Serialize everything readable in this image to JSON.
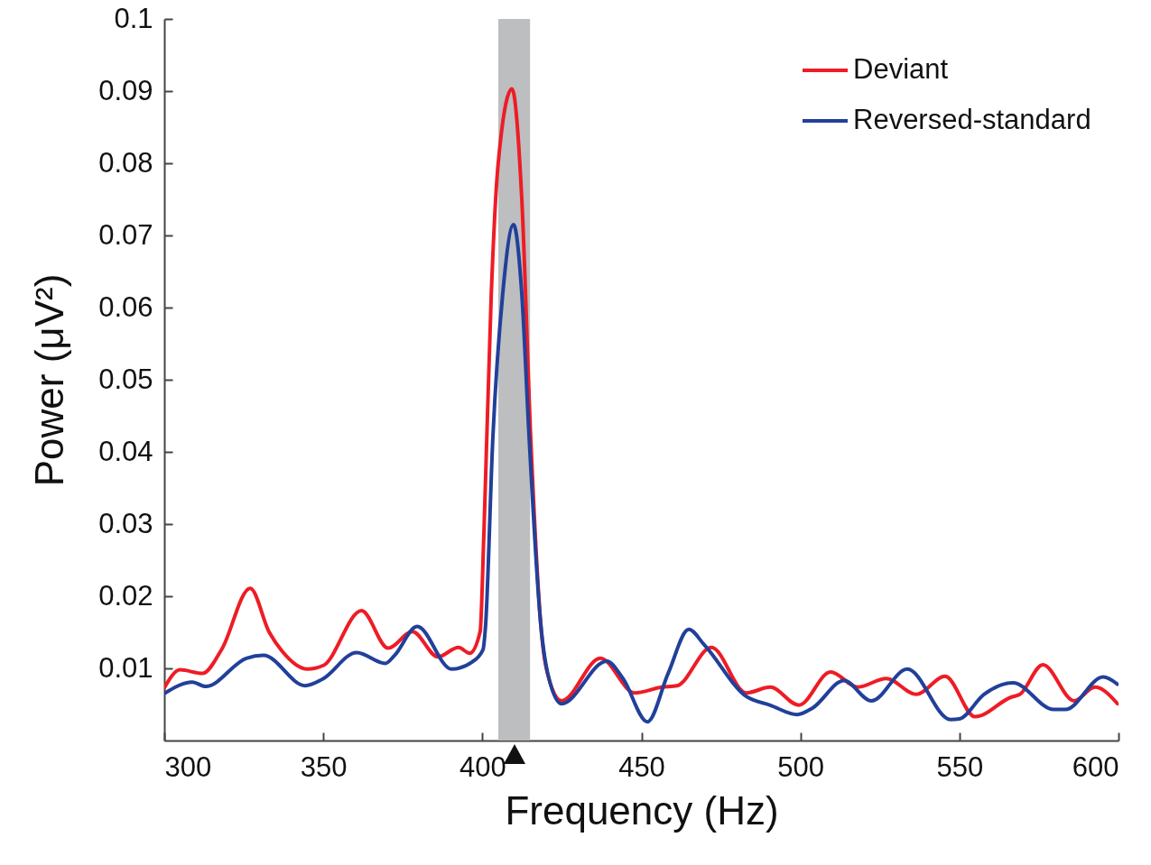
{
  "chart_data": {
    "type": "line",
    "xlabel": "Frequency (Hz)",
    "ylabel": "Power (μV²)",
    "xlim": [
      300,
      600
    ],
    "xticks": [
      300,
      350,
      400,
      450,
      500,
      550,
      600
    ],
    "ylim": [
      0,
      0.1
    ],
    "yticks": [
      0.01,
      0.02,
      0.03,
      0.04,
      0.05,
      0.06,
      0.07,
      0.08,
      0.09,
      0.1
    ],
    "grid": false,
    "legend": "top right",
    "line_style": "solid",
    "marker": "none",
    "bands": [
      {
        "axis": "x",
        "from": 405,
        "to": 415,
        "color": "#bcbec0"
      }
    ],
    "series": [
      {
        "name": "Deviant",
        "color": "#ee1c25",
        "x": [
          300,
          305,
          312,
          318,
          327,
          333,
          337,
          345,
          350,
          362,
          370.4,
          378,
          386,
          392.5,
          396,
          399.3,
          400.5,
          402.8,
          404.9,
          409.3,
          412.4,
          415.2,
          418.4,
          421.3,
          424.9,
          437.1,
          447.9,
          456.4,
          461.2,
          472,
          483,
          490.5,
          499.5,
          509.5,
          518,
          527,
          536.4,
          545.5,
          554.9,
          566.2,
          569,
          576.2,
          586.1,
          592.6,
          599.7
        ],
        "values": [
          0.0073,
          0.0098,
          0.0093,
          0.0126,
          0.0211,
          0.015,
          0.0124,
          0.0099,
          0.0104,
          0.018,
          0.0128,
          0.0151,
          0.0116,
          0.0129,
          0.0121,
          0.0151,
          0.029,
          0.0619,
          0.0796,
          0.0903,
          0.075,
          0.042,
          0.0159,
          0.008,
          0.0055,
          0.0114,
          0.0066,
          0.0074,
          0.0076,
          0.0129,
          0.0066,
          0.0074,
          0.0049,
          0.0095,
          0.0074,
          0.0086,
          0.0064,
          0.0089,
          0.0033,
          0.006,
          0.0064,
          0.0105,
          0.0055,
          0.0074,
          0.0051
        ]
      },
      {
        "name": "Reversed-standard",
        "color": "#21409a",
        "x": [
          300.3,
          308.8,
          313,
          325.8,
          331.2,
          344.3,
          349.7,
          360.5,
          369.5,
          372.4,
          379.5,
          390.3,
          396.8,
          400.2,
          401,
          403.3,
          406.4,
          409.8,
          412.4,
          414.7,
          418.4,
          420.6,
          424.9,
          439.1,
          444.2,
          451.9,
          458.4,
          464.9,
          469.7,
          483,
          490.5,
          499,
          503.8,
          513.7,
          522.3,
          533.6,
          547.2,
          550,
          557.7,
          566.8,
          579.6,
          583.3,
          595.2,
          599.7
        ],
        "values": [
          0.0066,
          0.0081,
          0.0075,
          0.0114,
          0.0118,
          0.0076,
          0.0085,
          0.0122,
          0.0107,
          0.0118,
          0.0158,
          0.0099,
          0.0109,
          0.0126,
          0.0159,
          0.042,
          0.0619,
          0.0715,
          0.0619,
          0.042,
          0.0159,
          0.0092,
          0.0051,
          0.011,
          0.0086,
          0.0026,
          0.0093,
          0.0154,
          0.0133,
          0.0061,
          0.0049,
          0.0036,
          0.0045,
          0.0083,
          0.0055,
          0.0099,
          0.0029,
          0.003,
          0.0064,
          0.008,
          0.0043,
          0.0043,
          0.0088,
          0.0078
        ]
      }
    ]
  }
}
